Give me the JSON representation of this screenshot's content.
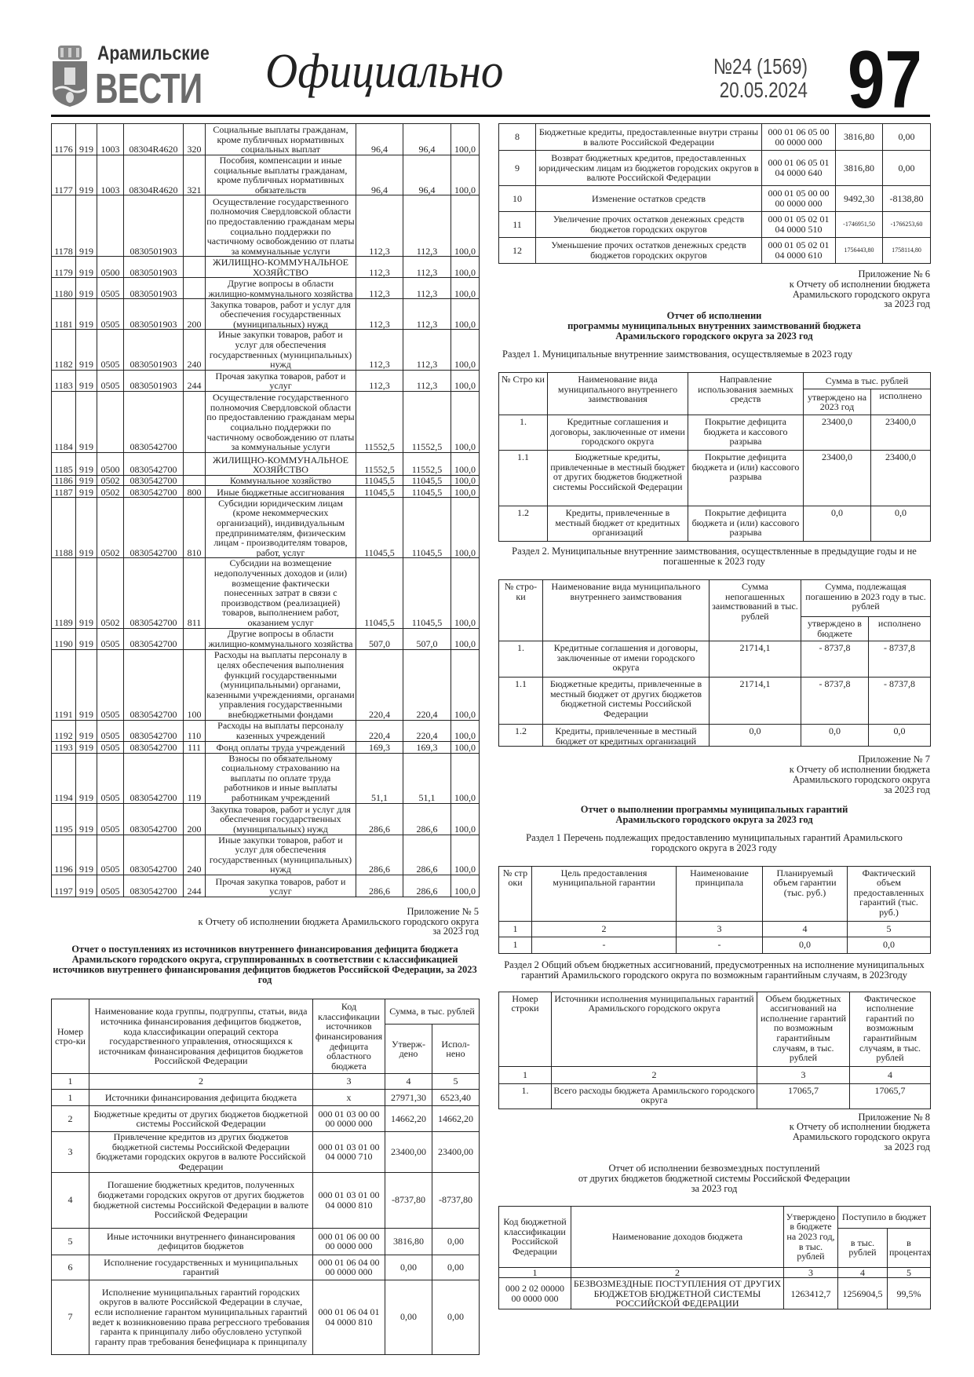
{
  "masthead": {
    "logo_line1": "Арамильские",
    "logo_line2": "ВЕСТИ",
    "rubric": "Официально",
    "issue": "№24 (1569)",
    "date": "20.05.2024",
    "page_number": "97"
  },
  "expense_table": {
    "rows": [
      [
        "1176",
        "919",
        "1003",
        "08304R4620",
        "320",
        "Социальные выплаты гражданам, кроме публичных нормативных социальных выплат",
        "96,4",
        "96,4",
        "100,0"
      ],
      [
        "1177",
        "919",
        "1003",
        "08304R4620",
        "321",
        "Пособия, компенсации и иные социальные выплаты гражданам, кроме публичных нормативных обязательств",
        "96,4",
        "96,4",
        "100,0"
      ],
      [
        "1178",
        "919",
        "",
        "0830501903",
        "",
        "Осуществление государственного полномочия Свердловской области по предоставлению гражданам меры социально поддержки по частичному освобождению от платы за коммунальные услуги",
        "112,3",
        "112,3",
        "100,0"
      ],
      [
        "1179",
        "919",
        "0500",
        "0830501903",
        "",
        "ЖИЛИЩНО-КОММУНАЛЬНОЕ ХОЗЯЙСТВО",
        "112,3",
        "112,3",
        "100,0"
      ],
      [
        "1180",
        "919",
        "0505",
        "0830501903",
        "",
        "Другие вопросы в области жилищно-коммунального хозяйства",
        "112,3",
        "112,3",
        "100,0"
      ],
      [
        "1181",
        "919",
        "0505",
        "0830501903",
        "200",
        "Закупка товаров, работ и услуг для обеспечения государственных (муниципальных) нужд",
        "112,3",
        "112,3",
        "100,0"
      ],
      [
        "1182",
        "919",
        "0505",
        "0830501903",
        "240",
        "Иные закупки товаров, работ и услуг для обеспечения государственных (муниципальных) нужд",
        "112,3",
        "112,3",
        "100,0"
      ],
      [
        "1183",
        "919",
        "0505",
        "0830501903",
        "244",
        "Прочая закупка товаров, работ и услуг",
        "112,3",
        "112,3",
        "100,0"
      ],
      [
        "1184",
        "919",
        "",
        "0830542700",
        "",
        "Осуществление государственного полномочия Свердловской области по предоставлению гражданам меры социально поддержки по частичному освобождению от платы за коммунальные услуги",
        "11552,5",
        "11552,5",
        "100,0"
      ],
      [
        "1185",
        "919",
        "0500",
        "0830542700",
        "",
        "ЖИЛИЩНО-КОММУНАЛЬНОЕ ХОЗЯЙСТВО",
        "11552,5",
        "11552,5",
        "100,0"
      ],
      [
        "1186",
        "919",
        "0502",
        "0830542700",
        "",
        "Коммунальное хозяйство",
        "11045,5",
        "11045,5",
        "100,0"
      ],
      [
        "1187",
        "919",
        "0502",
        "0830542700",
        "800",
        "Иные бюджетные ассигнования",
        "11045,5",
        "11045,5",
        "100,0"
      ],
      [
        "1188",
        "919",
        "0502",
        "0830542700",
        "810",
        "Субсидии юридическим лицам (кроме некоммерческих организаций), индивидуальным предпринимателям, физическим лицам - производителям товаров, работ, услуг",
        "11045,5",
        "11045,5",
        "100,0"
      ],
      [
        "1189",
        "919",
        "0502",
        "0830542700",
        "811",
        "Субсидии на возмещение недополученных доходов и (или) возмещение фактически понесенных затрат в связи с производством (реализацией) товаров, выполнением работ, оказанием услуг",
        "11045,5",
        "11045,5",
        "100,0"
      ],
      [
        "1190",
        "919",
        "0505",
        "0830542700",
        "",
        "Другие вопросы в области жилищно-коммунального хозяйства",
        "507,0",
        "507,0",
        "100,0"
      ],
      [
        "1191",
        "919",
        "0505",
        "0830542700",
        "100",
        "Расходы на выплаты персоналу в целях обеспечения выполнения функций государственными (муниципальными) органами, казенными учреждениями, органами управления государственными внебюджетными фондами",
        "220,4",
        "220,4",
        "100,0"
      ],
      [
        "1192",
        "919",
        "0505",
        "0830542700",
        "110",
        "Расходы на выплаты персоналу казенных учреждений",
        "220,4",
        "220,4",
        "100,0"
      ],
      [
        "1193",
        "919",
        "0505",
        "0830542700",
        "111",
        "Фонд оплаты труда учреждений",
        "169,3",
        "169,3",
        "100,0"
      ],
      [
        "1194",
        "919",
        "0505",
        "0830542700",
        "119",
        "Взносы по обязательному социальному страхованию на выплаты по оплате труда работников и иные выплаты работникам учреждений",
        "51,1",
        "51,1",
        "100,0"
      ],
      [
        "1195",
        "919",
        "0505",
        "0830542700",
        "200",
        "Закупка товаров, работ и услуг для обеспечения государственных (муниципальных) нужд",
        "286,6",
        "286,6",
        "100,0"
      ],
      [
        "1196",
        "919",
        "0505",
        "0830542700",
        "240",
        "Иные закупки товаров, работ и услуг для обеспечения государственных (муниципальных) нужд",
        "286,6",
        "286,6",
        "100,0"
      ],
      [
        "1197",
        "919",
        "0505",
        "0830542700",
        "244",
        "Прочая закупка товаров, работ и услуг",
        "286,6",
        "286,6",
        "100,0"
      ]
    ]
  },
  "appendix5": {
    "caption": [
      "Приложение № 5",
      "к Отчету об исполнении бюджета Арамильского городского округа",
      "за 2023 год"
    ],
    "title": "Отчет о поступлениях из источников внутреннего финансирования дефицита бюджета Арамильского городского округа, сгруппированных в соответствии с классификацией источников внутреннего финансирования дефицитов бюджетов Российской Федерации, за 2023 год",
    "headers": {
      "num": "Номер стро-ки",
      "name": "Наименование кода группы, подгруппы, статьи, вида источника финансирования дефицитов бюджетов, кода классификации операций сектора государственного управления, относящихся к источникам финансирования дефицитов бюджетов Российской Федерации",
      "code": "Код классификации источников финансирования дефицита областного бюджета",
      "sum": "Сумма, в тыс. рублей",
      "approved": "Утверж-дено",
      "executed": "Испол-нено",
      "col_numbers": [
        "1",
        "2",
        "3",
        "4",
        "5"
      ]
    },
    "rows": [
      [
        "1",
        "Источники финансирования дефицита бюджета",
        "х",
        "27971,30",
        "6523,40"
      ],
      [
        "2",
        "Бюджетные кредиты от других бюджетов бюджетной системы Российской Федерации",
        "000 01 03 00 00 00 0000 000",
        "14662,20",
        "14662,20"
      ],
      [
        "3",
        "Привлечение кредитов из других бюджетов бюджетной системы Российской Федерации бюджетами городских округов в валюте Российской Федерации",
        "000 01 03 01 00 04 0000 710",
        "23400,00",
        "23400,00"
      ],
      [
        "4",
        "Погашение бюджетных кредитов, полученных бюджетами городских округов от других бюджетов бюджетной системы Российской Федерации в валюте Российской Федерации",
        "000 01 03 01 00 04 0000 810",
        "-8737,80",
        "-8737,80"
      ],
      [
        "5",
        "Иные источники внутреннего финансирования дефицитов бюджетов",
        "000 01 06 00 00 00 0000 000",
        "3816,80",
        "0,00"
      ],
      [
        "6",
        "Исполнение государственных и муниципальных гарантий",
        "000 01 06 04 00 00 0000 000",
        "0,00",
        "0,00"
      ],
      [
        "7",
        "Исполнение муниципальных гарантий городских округов в валюте Российской Федерации в случае, если исполнение гарантом муниципальных гарантий ведет к возникновению права регрессного требования гаранта к принципалу либо обусловлено уступкой гаранту прав требования бенефициара к принципалу",
        "000 01 06 04 01 04 0000 810",
        "0,00",
        "0,00"
      ],
      [
        "8",
        "Бюджетные кредиты, предоставленные внутри страны в валюте Российской Федерации",
        "000 01 06 05 00 00 0000 000",
        "3816,80",
        "0,00"
      ],
      [
        "9",
        "Возврат бюджетных кредитов, предоставленных юридическим лицам из бюджетов городских округов в валюте Российской Федерации",
        "000 01 06 05 01 04 0000 640",
        "3816,80",
        "0,00"
      ],
      [
        "10",
        "Изменение остатков средств",
        "000 01 05 00 00 00 0000 000",
        "9492,30",
        "-8138,80"
      ],
      [
        "11",
        "Увеличение прочих остатков денежных средств бюджетов городских округов",
        "000 01 05 02 01 04 0000 510",
        "-1746951,50",
        "-1766253,60"
      ],
      [
        "12",
        "Уменьшение прочих остатков денежных средств бюджетов городских округов",
        "000 01 05 02 01 04 0000 610",
        "1756443,80",
        "1758114,80"
      ]
    ]
  },
  "appendix6": {
    "caption": [
      "Приложение № 6",
      "к Отчету об исполнении бюджета",
      "Арамильского городского округа",
      "за 2023 год"
    ],
    "title": [
      "Отчет об исполнении",
      "программы муниципальных внутренних заимствований бюджета",
      "Арамильского городского округа за 2023 год"
    ],
    "section1": {
      "heading": "Раздел 1. Муниципальные внутренние заимствования, осуществляемые в 2023 году",
      "headers": {
        "num": "№ Стро ки",
        "name": "Наименование вида муниципального внутреннего заимствования",
        "purpose": "Направление использования заемных средств",
        "sum": "Сумма в тыс. рублей",
        "approved": "утверждено на 2023 год",
        "executed": "исполнено"
      },
      "rows": [
        [
          "1.",
          "Кредитные соглашения и договоры, заключенные от имени городского округа",
          "Покрытие дефицита бюджета и кассового разрыва",
          "23400,0",
          "23400,0"
        ],
        [
          "1.1",
          "Бюджетные кредиты, привлеченные в местный бюджет от других бюджетов бюджетной системы Российской Федерации",
          "Покрытие дефицита бюджета и (или) кассового разрыва",
          "23400,0",
          "23400,0"
        ],
        [
          "1.2",
          "Кредиты, привлеченные в местный бюджет от кредитных организаций",
          "Покрытие дефицита бюджета и (или) кассового разрыва",
          "0,0",
          "0,0"
        ]
      ]
    },
    "section2": {
      "heading": "Раздел 2. Муниципальные внутренние заимствования, осуществленные в предыдущие годы и не погашенные к 2023 году",
      "headers": {
        "num": "№ стро-ки",
        "name": "Наименование вида муниципального внутреннего заимствования",
        "outstanding": "Сумма непогашенных заимствований в тыс. рублей",
        "to_repay": "Сумма, подлежащая погашению в 2023 году в тыс. рублей",
        "approved": "утверждено в бюджете",
        "executed": "исполнено"
      },
      "rows": [
        [
          "1.",
          "Кредитные соглашения и договоры, заключенные от имени городского округа",
          "21714,1",
          "- 8737,8",
          "- 8737,8"
        ],
        [
          "1.1",
          "Бюджетные кредиты, привлеченные в местный бюджет от других бюджетов бюджетной системы Российской Федерации",
          "21714,1",
          "- 8737,8",
          "- 8737,8"
        ],
        [
          "1.2",
          "Кредиты, привлеченные в местный бюджет от кредитных организаций",
          "0,0",
          "0,0",
          "0,0"
        ]
      ]
    }
  },
  "appendix7": {
    "caption": [
      "Приложение № 7",
      "к Отчету об исполнении бюджета",
      "Арамильского городского округа",
      "за 2023 год"
    ],
    "title": [
      "Отчет о выполнении программы муниципальных гарантий",
      "Арамильского городского округа за 2023 год"
    ],
    "section1": {
      "heading": "Раздел 1 Перечень подлежащих предоставлению муниципальных гарантий Арамильского городского округа в 2023 году",
      "headers": [
        "№ стр оки",
        "Цель предоставления муниципальной гарантии",
        "Наименование принципала",
        "Планируемый объем гарантии (тыс. руб.)",
        "Фактический объем предоставленных гарантий (тыс. руб.)"
      ],
      "col_numbers": [
        "1",
        "2",
        "3",
        "4",
        "5"
      ],
      "rows": [
        [
          "1",
          "-",
          "-",
          "0,0",
          "0,0"
        ]
      ]
    },
    "section2": {
      "heading": "Раздел 2 Общий объем бюджетных ассигнований, предусмотренных на исполнение муниципальных гарантий Арамильского городского округа по возможным гарантийным случаям, в 2023году",
      "headers": [
        "Номер строки",
        "Источники исполнения муниципальных гарантий Арамильского городского округа",
        "Объем бюджетных ассигнований на исполнение гарантий по возможным гарантийным случаям, в тыс. рублей",
        "Фактическое исполнение гарантий по возможным гарантийным случаям, в тыс. рублей"
      ],
      "col_numbers": [
        "1",
        "2",
        "3",
        "4"
      ],
      "rows": [
        [
          "1.",
          "Всего расходы бюджета Арамильского городского округа",
          "17065,7",
          "17065,7"
        ]
      ]
    }
  },
  "appendix8": {
    "caption": [
      "Приложение № 8",
      "к Отчету об исполнении бюджета",
      "Арамильского городского округа",
      "за 2023 год"
    ],
    "title": [
      "Отчет об исполнении безвозмездных поступлений",
      "от других бюджетов бюджетной системы Российской Федерации",
      "за 2023 год"
    ],
    "headers": {
      "code": "Код бюджетной классификации Российской Федерации",
      "name": "Наименование доходов бюджета",
      "approved": "Утверждено в бюджете на 2023 год, в тыс. рублей",
      "received": "Поступило в бюджет",
      "thousands": "в тыс. рублей",
      "percent": "в процентах"
    },
    "col_numbers": [
      "1",
      "2",
      "3",
      "4",
      "5"
    ],
    "rows": [
      [
        "000 2 02 00000 00 0000 000",
        "БЕЗВОЗМЕЗДНЫЕ ПОСТУПЛЕНИЯ ОТ ДРУГИХ БЮДЖЕТОВ БЮДЖЕТНОЙ СИСТЕМЫ РОССИЙСКОЙ ФЕДЕРАЦИИ",
        "1263412,7",
        "1256904,5",
        "99,5%"
      ]
    ]
  }
}
